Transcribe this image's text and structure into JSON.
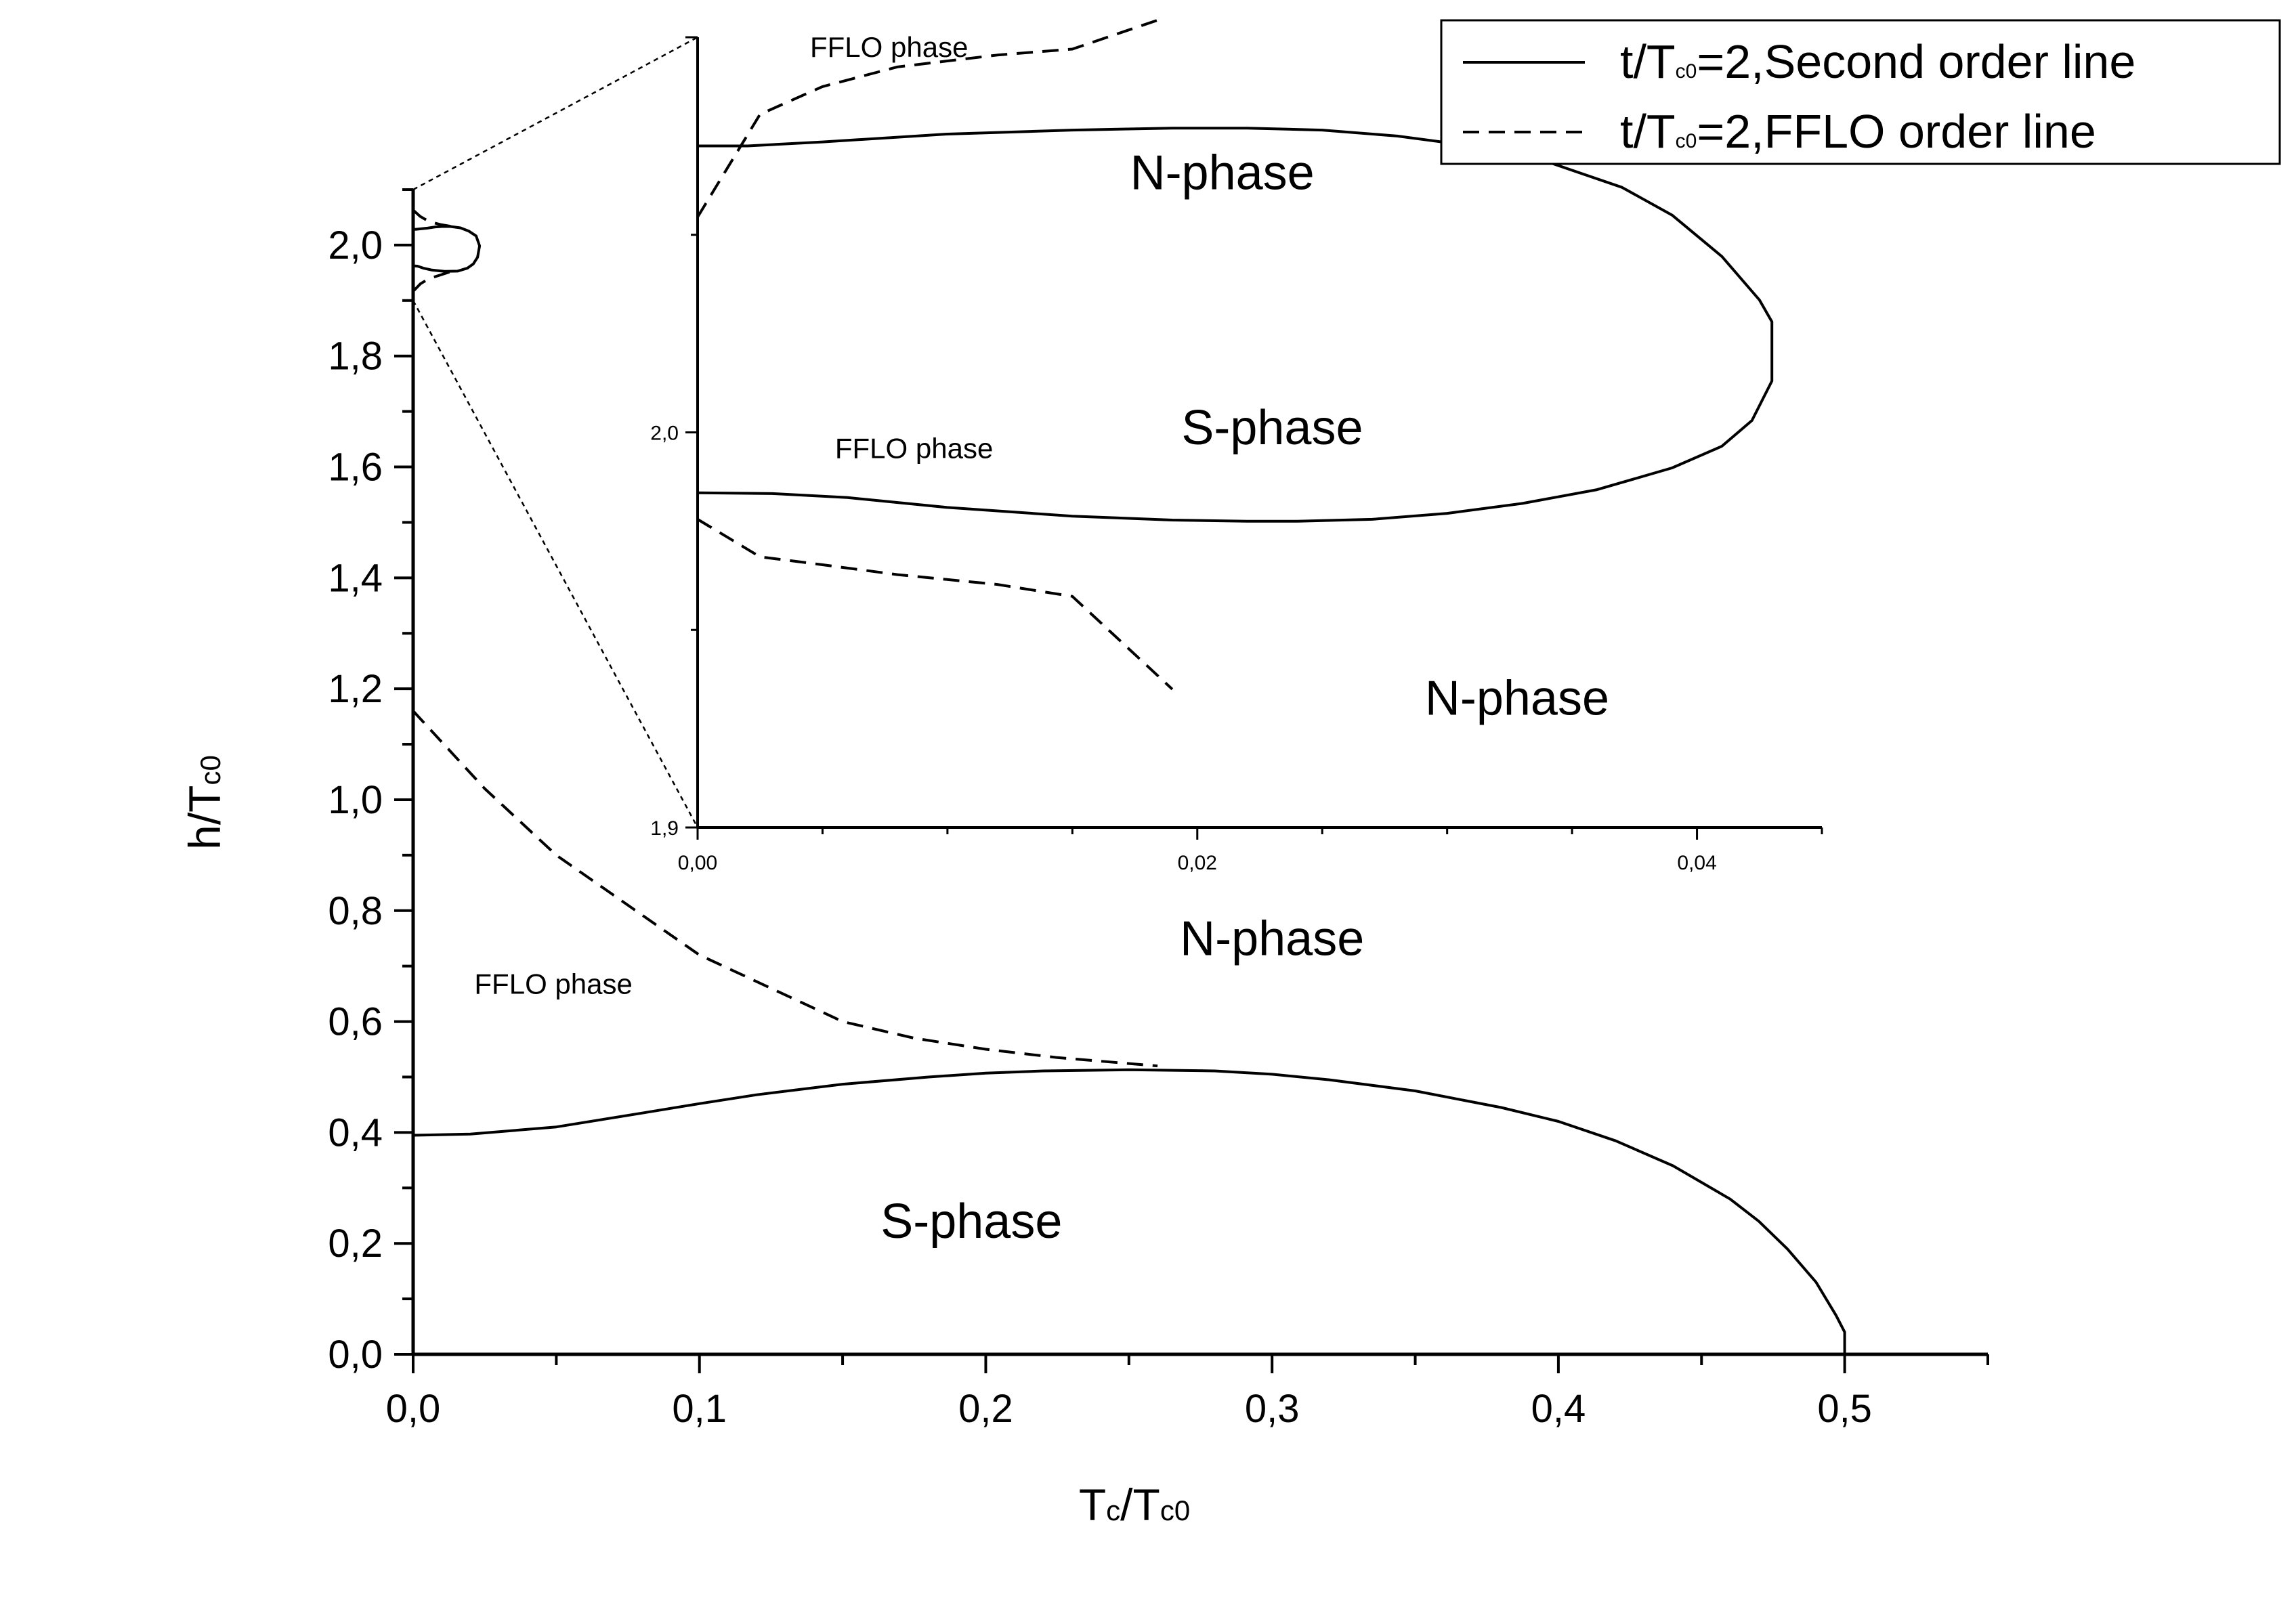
{
  "chart_data": [
    {
      "type": "line",
      "role": "main",
      "xlabel": "Tc/Tc0",
      "ylabel": "h/Tc0",
      "xlim": [
        0,
        0.55
      ],
      "ylim": [
        0,
        2.1
      ],
      "x_ticks": [
        "0,0",
        "0,1",
        "0,2",
        "0,3",
        "0,4",
        "0,5"
      ],
      "y_ticks": [
        "0,0",
        "0,2",
        "0,4",
        "0,6",
        "0,8",
        "1,0",
        "1,2",
        "1,4",
        "1,6",
        "1,8",
        "2,0"
      ],
      "grid": false,
      "legend_position": "top-right",
      "legend": [
        {
          "prefix": "t/T",
          "sub": "c0",
          "suffix": "=2,Second order line",
          "style": "solid"
        },
        {
          "prefix": "t/T",
          "sub": "c0",
          "suffix": "=2,FFLO order line",
          "style": "dashed"
        }
      ],
      "annotations": [
        {
          "text": "N-phase",
          "x": 0.3,
          "y": 0.72
        },
        {
          "text": "S-phase",
          "x": 0.195,
          "y": 0.21
        },
        {
          "text": "FFLO phase",
          "x": 0.049,
          "y": 0.65
        }
      ],
      "series": [
        {
          "style": "solid",
          "x": [
            0,
            0.02,
            0.05,
            0.08,
            0.1,
            0.12,
            0.15,
            0.18,
            0.2,
            0.22,
            0.25,
            0.28,
            0.3,
            0.32,
            0.35,
            0.38,
            0.4,
            0.42,
            0.44,
            0.46,
            0.47,
            0.48,
            0.49,
            0.497,
            0.5,
            0.5
          ],
          "y": [
            0.395,
            0.397,
            0.41,
            0.435,
            0.452,
            0.468,
            0.487,
            0.5,
            0.507,
            0.511,
            0.513,
            0.511,
            0.505,
            0.495,
            0.475,
            0.445,
            0.42,
            0.385,
            0.34,
            0.28,
            0.24,
            0.19,
            0.13,
            0.07,
            0.04,
            0.0
          ]
        },
        {
          "style": "dashed",
          "x": [
            0,
            0.025,
            0.05,
            0.075,
            0.1,
            0.125,
            0.15,
            0.175,
            0.2,
            0.225,
            0.26
          ],
          "y": [
            1.16,
            1.02,
            0.9,
            0.81,
            0.72,
            0.66,
            0.6,
            0.57,
            0.55,
            0.535,
            0.52
          ]
        },
        {
          "style": "solid",
          "x": [
            0,
            0.0015,
            0.0035,
            0.0065,
            0.011,
            0.0155,
            0.019,
            0.021,
            0.0225,
            0.0232,
            0.022,
            0.0195,
            0.0165,
            0.013,
            0.01,
            0.0075,
            0.005,
            0.003,
            0.001,
            0
          ],
          "y": [
            1.9625,
            1.962,
            1.9585,
            1.955,
            1.9525,
            1.953,
            1.9585,
            1.966,
            1.978,
            1.9985,
            2.0165,
            2.025,
            2.031,
            2.0335,
            2.0335,
            2.0325,
            2.0305,
            2.0295,
            2.0285,
            2.0285
          ]
        },
        {
          "style": "dashed",
          "x": [
            0,
            0.0025,
            0.0055,
            0.0095,
            0.013
          ],
          "y": [
            2.063,
            2.0515,
            2.0425,
            2.037,
            2.034
          ]
        },
        {
          "style": "dashed",
          "x": [
            0,
            0.0025,
            0.0055,
            0.0095,
            0.013
          ],
          "y": [
            1.9165,
            1.93,
            1.9395,
            1.946,
            1.952
          ]
        }
      ]
    },
    {
      "type": "line",
      "role": "inset",
      "xlim": [
        0,
        0.045
      ],
      "ylim": [
        1.9,
        2.1
      ],
      "x_ticks": [
        "0,00",
        "0,02",
        "0,04"
      ],
      "y_ticks": [
        "1,9",
        "2,0"
      ],
      "annotations": [
        {
          "text": "N-phase",
          "x": 0.021,
          "y": 2.0615,
          "size": "large"
        },
        {
          "text": "S-phase",
          "x": 0.023,
          "y": 1.997,
          "size": "large"
        },
        {
          "text": "N-phase",
          "x": 0.0328,
          "y": 1.9285,
          "size": "large"
        },
        {
          "text": "FFLO phase",
          "x": 0.0045,
          "y": 2.095,
          "size": "small"
        },
        {
          "text": "FFLO phase",
          "x": 0.0055,
          "y": 1.9935,
          "size": "small"
        }
      ],
      "series": [
        {
          "style": "solid",
          "x": [
            0,
            0.002,
            0.005,
            0.01,
            0.015,
            0.019,
            0.022,
            0.025,
            0.028,
            0.031,
            0.034,
            0.037,
            0.039,
            0.041,
            0.0425,
            0.043,
            0.043,
            0.0422,
            0.041,
            0.039,
            0.036,
            0.033,
            0.03,
            0.027,
            0.024,
            0.022,
            0.019,
            0.015,
            0.01,
            0.006,
            0.003,
            0
          ],
          "y": [
            2.0725,
            2.0725,
            2.0735,
            2.0755,
            2.0765,
            2.077,
            2.077,
            2.0765,
            2.075,
            2.0725,
            2.0685,
            2.062,
            2.055,
            2.0445,
            2.0335,
            2.028,
            2.013,
            2.003,
            1.9965,
            1.991,
            1.9855,
            1.982,
            1.9795,
            1.978,
            1.9775,
            1.9775,
            1.9778,
            1.9788,
            1.981,
            1.9835,
            1.9845,
            1.9847
          ]
        },
        {
          "style": "dashed",
          "x": [
            0,
            0.0025,
            0.005,
            0.008,
            0.012,
            0.015,
            0.0185
          ],
          "y": [
            2.0545,
            2.0805,
            2.0875,
            2.0925,
            2.0955,
            2.097,
            2.1045
          ]
        },
        {
          "style": "dashed",
          "x": [
            0,
            0.0025,
            0.005,
            0.008,
            0.012,
            0.015,
            0.019
          ],
          "y": [
            1.978,
            1.9685,
            1.9665,
            1.964,
            1.9615,
            1.9585,
            1.935
          ]
        }
      ]
    }
  ]
}
